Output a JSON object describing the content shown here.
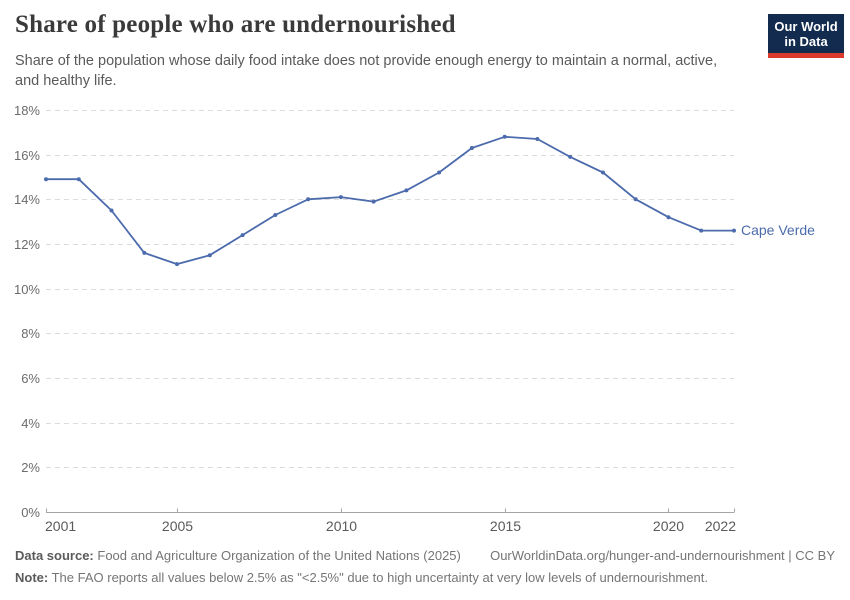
{
  "header": {
    "title": "Share of people who are undernourished",
    "subtitle": "Share of the population whose daily food intake does not provide enough energy to maintain a normal, active, and healthy life.",
    "logo": {
      "line1": "Our World",
      "line2": "in Data",
      "bg_color": "#122b4e",
      "accent_color": "#dc3a2c"
    }
  },
  "chart_data": {
    "type": "line",
    "title": "Share of people who are undernourished",
    "xlabel": "",
    "ylabel": "",
    "xlim": [
      2001,
      2022
    ],
    "ylim": [
      0,
      18
    ],
    "yticks": [
      0,
      2,
      4,
      6,
      8,
      10,
      12,
      14,
      16,
      18
    ],
    "ytick_suffix": "%",
    "xticks": [
      2001,
      2005,
      2010,
      2015,
      2020,
      2022
    ],
    "grid": "horizontal-dashed",
    "legend_position": "end-of-line",
    "series": [
      {
        "name": "Cape Verde",
        "color": "#4c6bac",
        "x": [
          2001,
          2002,
          2003,
          2004,
          2005,
          2006,
          2007,
          2008,
          2009,
          2010,
          2011,
          2012,
          2013,
          2014,
          2015,
          2016,
          2017,
          2018,
          2019,
          2020,
          2021,
          2022
        ],
        "values": [
          14.9,
          14.9,
          13.5,
          11.6,
          11.1,
          11.5,
          12.4,
          13.3,
          14.0,
          14.1,
          13.9,
          14.4,
          15.2,
          16.3,
          16.8,
          16.7,
          15.9,
          15.2,
          14.0,
          13.2,
          12.6,
          12.6
        ]
      }
    ]
  },
  "footer": {
    "datasource_label": "Data source:",
    "datasource": "Food and Agriculture Organization of the United Nations (2025)",
    "link": "OurWorldinData.org/hunger-and-undernourishment | CC BY",
    "note_label": "Note:",
    "note": "The FAO reports all values below 2.5% as \"<2.5%\" due to high uncertainty at very low levels of undernourishment."
  }
}
